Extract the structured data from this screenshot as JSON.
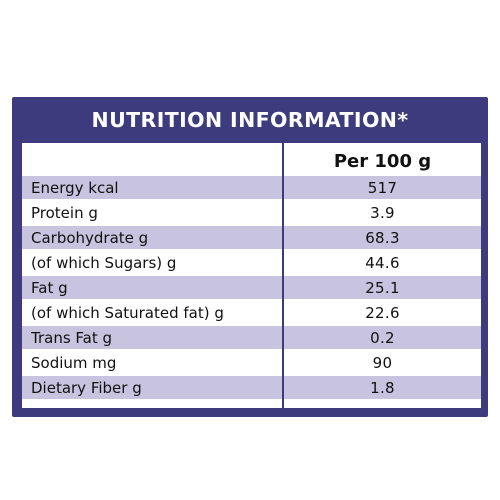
{
  "title": "NUTRITION INFORMATION*",
  "column_header": "Per 100 g",
  "rows": [
    {
      "label": "Energy kcal",
      "value": "517"
    },
    {
      "label": "Protein g",
      "value": "3.9"
    },
    {
      "label": "Carbohydrate g",
      "value": "68.3"
    },
    {
      "label": "(of which Sugars) g",
      "value": "44.6"
    },
    {
      "label": "Fat g",
      "value": "25.1"
    },
    {
      "label": "(of which Saturated fat) g",
      "value": "22.6"
    },
    {
      "label": "Trans Fat g",
      "value": "0.2"
    },
    {
      "label": "Sodium mg",
      "value": "90"
    },
    {
      "label": "Dietary Fiber g",
      "value": "1.8"
    }
  ],
  "colors": {
    "border": "#3d3b7e",
    "shaded_row": "#c8c3df",
    "plain_row": "#ffffff",
    "title_text": "#ffffff"
  }
}
